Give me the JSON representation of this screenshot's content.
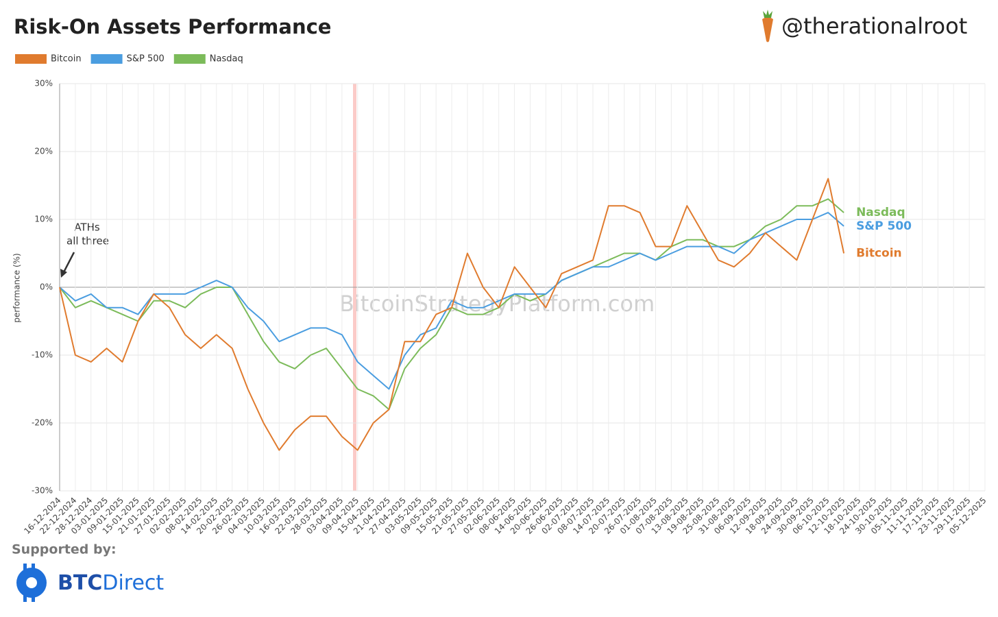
{
  "chart_data": {
    "type": "line",
    "title": "Risk-On Assets Performance",
    "handle": "@therationalroot",
    "y_label": "performance (%)",
    "annotation": [
      "ATHs",
      "all three"
    ],
    "watermark": "BitcoinStrategyPlatform.com",
    "sponsor_label": "Supported by:",
    "sponsor_name": [
      "BTC",
      "Direct"
    ],
    "categories": [
      "16-12-2024",
      "22-12-2024",
      "28-12-2024",
      "03-01-2025",
      "09-01-2025",
      "15-01-2025",
      "21-01-2025",
      "27-01-2025",
      "02-02-2025",
      "08-02-2025",
      "14-02-2025",
      "20-02-2025",
      "26-02-2025",
      "04-03-2025",
      "10-03-2025",
      "16-03-2025",
      "22-03-2025",
      "28-03-2025",
      "03-04-2025",
      "09-04-2025",
      "15-04-2025",
      "21-04-2025",
      "27-04-2025",
      "03-05-2025",
      "09-05-2025",
      "15-05-2025",
      "21-05-2025",
      "27-05-2025",
      "02-06-2025",
      "08-06-2025",
      "14-06-2025",
      "20-06-2025",
      "26-06-2025",
      "02-07-2025",
      "08-07-2025",
      "14-07-2025",
      "20-07-2025",
      "26-07-2025",
      "01-08-2025",
      "07-08-2025",
      "13-08-2025",
      "19-08-2025",
      "25-08-2025",
      "31-08-2025",
      "06-09-2025",
      "12-09-2025",
      "18-09-2025",
      "24-09-2025",
      "30-09-2025",
      "06-10-2025",
      "12-10-2025",
      "18-10-2025",
      "24-10-2025",
      "30-10-2025",
      "05-11-2025",
      "11-11-2025",
      "17-11-2025",
      "23-11-2025",
      "29-11-2025",
      "05-12-2025"
    ],
    "series": [
      {
        "name": "Bitcoin",
        "color": "#e07b2e",
        "values": [
          0,
          -10,
          -11,
          -9,
          -11,
          -5,
          -1,
          -3,
          -7,
          -9,
          -7,
          -9,
          -15,
          -20,
          -24,
          -21,
          -19,
          -19,
          -22,
          -24,
          -20,
          -18,
          -8,
          -8,
          -4,
          -3,
          5,
          0,
          -3,
          3,
          0,
          -3,
          2,
          3,
          4,
          12,
          12,
          11,
          6,
          6,
          12,
          8,
          4,
          3,
          5,
          8,
          6,
          4,
          10,
          16,
          5,
          null,
          null,
          null,
          null,
          null,
          null,
          null,
          null,
          null
        ]
      },
      {
        "name": "S&P 500",
        "color": "#4a9de0",
        "values": [
          0,
          -2,
          -1,
          -3,
          -3,
          -4,
          -1,
          -1,
          -1,
          0,
          1,
          0,
          -3,
          -5,
          -8,
          -7,
          -6,
          -6,
          -7,
          -11,
          -13,
          -15,
          -10,
          -7,
          -6,
          -2,
          -3,
          -3,
          -2,
          -1,
          -1,
          -1,
          1,
          2,
          3,
          3,
          4,
          5,
          4,
          5,
          6,
          6,
          6,
          5,
          7,
          8,
          9,
          10,
          10,
          11,
          9,
          null,
          null,
          null,
          null,
          null,
          null,
          null,
          null,
          null
        ]
      },
      {
        "name": "Nasdaq",
        "color": "#7cbb5a",
        "values": [
          0,
          -3,
          -2,
          -3,
          -4,
          -5,
          -2,
          -2,
          -3,
          -1,
          0,
          0,
          -4,
          -8,
          -11,
          -12,
          -10,
          -9,
          -12,
          -15,
          -16,
          -18,
          -12,
          -9,
          -7,
          -3,
          -4,
          -4,
          -3,
          -1,
          -2,
          -1,
          1,
          2,
          3,
          4,
          5,
          5,
          4,
          6,
          7,
          7,
          6,
          6,
          7,
          9,
          10,
          12,
          12,
          13,
          11,
          null,
          null,
          null,
          null,
          null,
          null,
          null,
          null,
          null
        ]
      }
    ],
    "ylim": [
      -30,
      30
    ],
    "yticks": [
      {
        "value": -30,
        "label": "-30%"
      },
      {
        "value": -20,
        "label": "-20%"
      },
      {
        "value": -10,
        "label": "-10%"
      },
      {
        "value": 0,
        "label": "0%"
      },
      {
        "value": 10,
        "label": "10%"
      },
      {
        "value": 20,
        "label": "20%"
      },
      {
        "value": 30,
        "label": "30%"
      }
    ],
    "grid": true,
    "legend": "top-left"
  }
}
